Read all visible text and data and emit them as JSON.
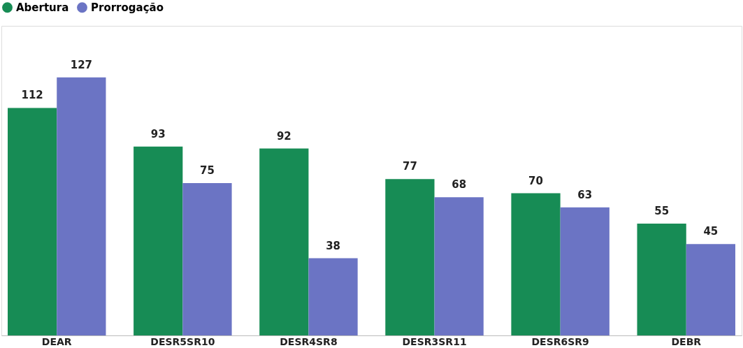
{
  "chart_data": {
    "type": "bar",
    "categories": [
      "DEAR",
      "DESR5SR10",
      "DESR4SR8",
      "DESR3SR11",
      "DESR6SR9",
      "DEBR"
    ],
    "series": [
      {
        "name": "Abertura",
        "color": "#178c55",
        "values": [
          112,
          93,
          92,
          77,
          70,
          55
        ]
      },
      {
        "name": "Prorrogação",
        "color": "#6b74c4",
        "values": [
          127,
          75,
          38,
          68,
          63,
          45
        ]
      }
    ],
    "data_labels": true,
    "legend": "top",
    "grid": false
  }
}
